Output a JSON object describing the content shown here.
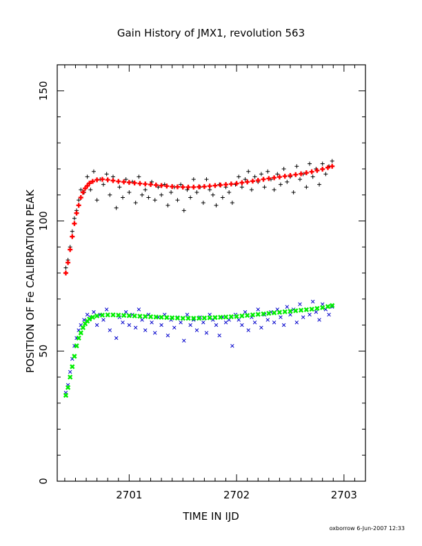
{
  "chart_data": {
    "type": "scatter",
    "title": "Gain History of JMX1, revolution 563",
    "xlabel": "TIME IN IJD",
    "ylabel": "POSITION OF Fe CALIBRATION PEAK",
    "xlim": [
      2700.33,
      2703.2
    ],
    "ylim": [
      0,
      160
    ],
    "xticks": [
      2701,
      2702,
      2703
    ],
    "xtick_labels": [
      "2701",
      "2702",
      "2703"
    ],
    "yticks": [
      0,
      50,
      100,
      150
    ],
    "ytick_labels": [
      "0",
      "50",
      "100",
      "150"
    ],
    "grid": false,
    "legend": "none",
    "footer": "oxborrow   6-Jun-2007 12:33",
    "series": [
      {
        "marker": "+",
        "color": "#000000",
        "x": [
          2700.41,
          2700.43,
          2700.45,
          2700.47,
          2700.49,
          2700.51,
          2700.53,
          2700.55,
          2700.58,
          2700.61,
          2700.64,
          2700.67,
          2700.7,
          2700.73,
          2700.76,
          2700.79,
          2700.82,
          2700.85,
          2700.88,
          2700.91,
          2700.94,
          2700.97,
          2701.0,
          2701.03,
          2701.06,
          2701.09,
          2701.12,
          2701.15,
          2701.18,
          2701.21,
          2701.24,
          2701.27,
          2701.3,
          2701.33,
          2701.36,
          2701.39,
          2701.42,
          2701.45,
          2701.48,
          2701.51,
          2701.54,
          2701.57,
          2701.6,
          2701.63,
          2701.66,
          2701.69,
          2701.72,
          2701.75,
          2701.78,
          2701.81,
          2701.84,
          2701.87,
          2701.9,
          2701.93,
          2701.96,
          2701.99,
          2702.02,
          2702.05,
          2702.08,
          2702.11,
          2702.14,
          2702.17,
          2702.2,
          2702.23,
          2702.26,
          2702.29,
          2702.32,
          2702.35,
          2702.38,
          2702.41,
          2702.44,
          2702.47,
          2702.5,
          2702.53,
          2702.56,
          2702.59,
          2702.62,
          2702.65,
          2702.68,
          2702.71,
          2702.74,
          2702.77,
          2702.8,
          2702.83,
          2702.86,
          2702.89
        ],
        "y": [
          82,
          85,
          90,
          96,
          101,
          104,
          108,
          112,
          111,
          117,
          112,
          119,
          108,
          116,
          114,
          118,
          110,
          117,
          105,
          113,
          109,
          116,
          111,
          115,
          107,
          117,
          110,
          112,
          109,
          115,
          108,
          113,
          110,
          114,
          106,
          111,
          113,
          108,
          114,
          104,
          112,
          109,
          116,
          111,
          113,
          107,
          116,
          112,
          110,
          106,
          114,
          109,
          113,
          111,
          107,
          114,
          117,
          113,
          116,
          119,
          112,
          117,
          115,
          118,
          113,
          119,
          116,
          112,
          118,
          114,
          120,
          115,
          117,
          111,
          121,
          116,
          118,
          113,
          122,
          117,
          120,
          114,
          122,
          118,
          121,
          123
        ]
      },
      {
        "marker": "+",
        "color": "#ff0000",
        "x": [
          2700.41,
          2700.43,
          2700.45,
          2700.47,
          2700.49,
          2700.51,
          2700.53,
          2700.55,
          2700.57,
          2700.59,
          2700.61,
          2700.63,
          2700.66,
          2700.7,
          2700.75,
          2700.8,
          2700.85,
          2700.9,
          2700.95,
          2701.0,
          2701.05,
          2701.1,
          2701.15,
          2701.2,
          2701.25,
          2701.3,
          2701.35,
          2701.4,
          2701.45,
          2701.5,
          2701.55,
          2701.6,
          2701.65,
          2701.7,
          2701.75,
          2701.8,
          2701.85,
          2701.9,
          2701.95,
          2702.0,
          2702.05,
          2702.1,
          2702.15,
          2702.2,
          2702.25,
          2702.3,
          2702.35,
          2702.4,
          2702.45,
          2702.5,
          2702.55,
          2702.6,
          2702.65,
          2702.7,
          2702.75,
          2702.8,
          2702.85,
          2702.89
        ],
        "y": [
          80,
          84,
          89,
          94,
          99,
          103,
          106,
          109,
          111,
          112.5,
          113.5,
          114.5,
          115.2,
          115.8,
          116,
          115.8,
          115.5,
          115.2,
          115,
          114.8,
          114.6,
          114.4,
          114.2,
          114,
          113.8,
          113.6,
          113.4,
          113.2,
          113.1,
          113,
          113,
          113,
          113.1,
          113.2,
          113.4,
          113.6,
          113.8,
          114,
          114.2,
          114.4,
          114.7,
          115,
          115.3,
          115.6,
          116,
          116.3,
          116.6,
          116.9,
          117.2,
          117.5,
          117.8,
          118.1,
          118.5,
          118.9,
          119.4,
          119.9,
          120.5,
          121
        ]
      },
      {
        "marker": "x",
        "color": "#0000cc",
        "x": [
          2700.41,
          2700.43,
          2700.45,
          2700.47,
          2700.49,
          2700.51,
          2700.53,
          2700.55,
          2700.58,
          2700.61,
          2700.64,
          2700.67,
          2700.7,
          2700.73,
          2700.76,
          2700.79,
          2700.82,
          2700.85,
          2700.88,
          2700.91,
          2700.94,
          2700.97,
          2701.0,
          2701.03,
          2701.06,
          2701.09,
          2701.12,
          2701.15,
          2701.18,
          2701.21,
          2701.24,
          2701.27,
          2701.3,
          2701.33,
          2701.36,
          2701.39,
          2701.42,
          2701.45,
          2701.48,
          2701.51,
          2701.54,
          2701.57,
          2701.6,
          2701.63,
          2701.66,
          2701.69,
          2701.72,
          2701.75,
          2701.78,
          2701.81,
          2701.84,
          2701.87,
          2701.9,
          2701.93,
          2701.96,
          2701.99,
          2702.02,
          2702.05,
          2702.08,
          2702.11,
          2702.14,
          2702.17,
          2702.2,
          2702.23,
          2702.26,
          2702.29,
          2702.32,
          2702.35,
          2702.38,
          2702.41,
          2702.44,
          2702.47,
          2702.5,
          2702.53,
          2702.56,
          2702.59,
          2702.62,
          2702.65,
          2702.68,
          2702.71,
          2702.74,
          2702.77,
          2702.8,
          2702.83,
          2702.86,
          2702.89
        ],
        "y": [
          34,
          37,
          42,
          47,
          52,
          55,
          58,
          60,
          62,
          64,
          63,
          65,
          60,
          64,
          62,
          66,
          58,
          64,
          55,
          63,
          61,
          65,
          60,
          64,
          59,
          66,
          62,
          58,
          64,
          61,
          57,
          63,
          60,
          64,
          56,
          62,
          59,
          63,
          61,
          54,
          64,
          60,
          62,
          58,
          63,
          61,
          57,
          64,
          62,
          60,
          56,
          63,
          61,
          62,
          52,
          64,
          62,
          60,
          65,
          58,
          63,
          61,
          66,
          59,
          64,
          62,
          65,
          61,
          66,
          63,
          60,
          67,
          64,
          66,
          61,
          68,
          63,
          66,
          64,
          69,
          65,
          62,
          68,
          66,
          64,
          67
        ]
      },
      {
        "marker": "x",
        "color": "#00ee00",
        "x": [
          2700.41,
          2700.43,
          2700.45,
          2700.47,
          2700.49,
          2700.51,
          2700.53,
          2700.55,
          2700.57,
          2700.59,
          2700.61,
          2700.63,
          2700.66,
          2700.7,
          2700.75,
          2700.8,
          2700.85,
          2700.9,
          2700.95,
          2701.0,
          2701.05,
          2701.1,
          2701.15,
          2701.2,
          2701.25,
          2701.3,
          2701.35,
          2701.4,
          2701.45,
          2701.5,
          2701.55,
          2701.6,
          2701.65,
          2701.7,
          2701.75,
          2701.8,
          2701.85,
          2701.9,
          2701.95,
          2702.0,
          2702.05,
          2702.1,
          2702.15,
          2702.2,
          2702.25,
          2702.3,
          2702.35,
          2702.4,
          2702.45,
          2702.5,
          2702.55,
          2702.6,
          2702.65,
          2702.7,
          2702.75,
          2702.8,
          2702.85,
          2702.89
        ],
        "y": [
          33,
          36,
          40,
          44,
          48,
          52,
          55,
          57,
          59,
          60.5,
          61.5,
          62.3,
          63,
          63.5,
          63.8,
          63.9,
          63.9,
          63.8,
          63.7,
          63.6,
          63.5,
          63.4,
          63.3,
          63.2,
          63.1,
          63,
          62.9,
          62.8,
          62.7,
          62.6,
          62.6,
          62.6,
          62.6,
          62.7,
          62.8,
          62.9,
          63,
          63.1,
          63.2,
          63.3,
          63.5,
          63.7,
          63.9,
          64.1,
          64.3,
          64.5,
          64.7,
          64.9,
          65.1,
          65.3,
          65.5,
          65.7,
          65.9,
          66.1,
          66.4,
          66.7,
          67.1,
          67.5
        ]
      }
    ]
  }
}
